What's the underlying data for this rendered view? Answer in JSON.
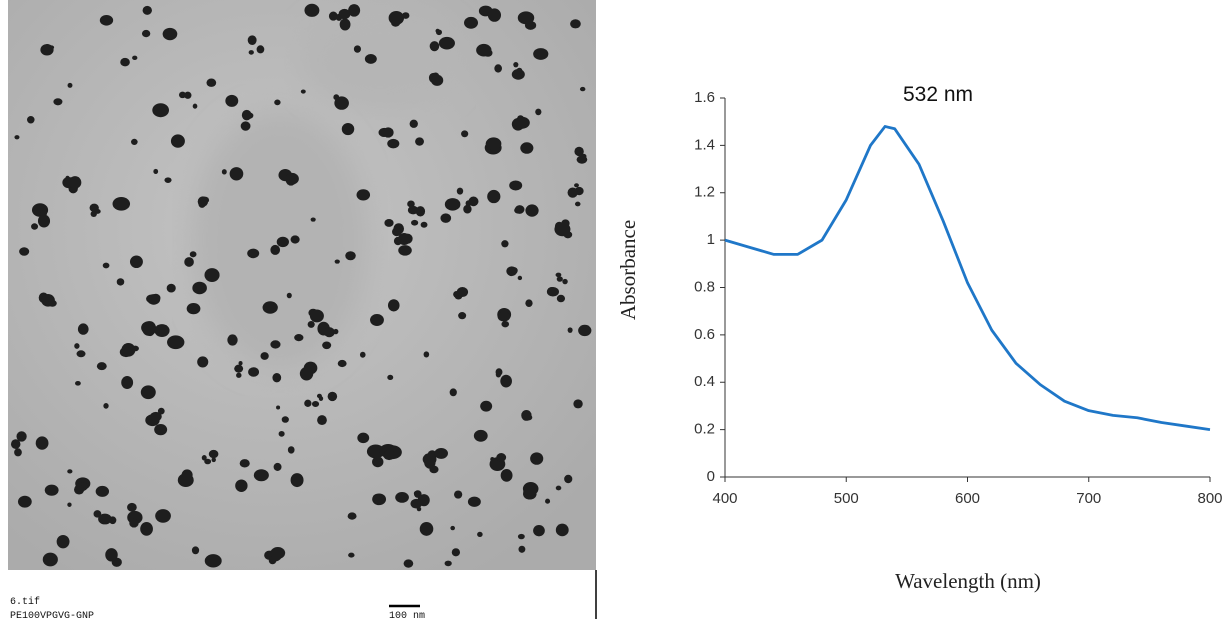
{
  "image": {
    "filename": "6.tif",
    "sample": "PE100VPGVG-GNP",
    "scale_bar": "100 nm"
  },
  "chart_data": {
    "type": "line",
    "x_label": "Wavelength (nm)",
    "y_label": "Absorbance",
    "annotation": "532 nm",
    "x": [
      400,
      420,
      440,
      460,
      480,
      500,
      520,
      532,
      540,
      560,
      580,
      600,
      620,
      640,
      660,
      680,
      700,
      720,
      740,
      760,
      780,
      800
    ],
    "series": [
      {
        "name": "Absorbance",
        "color": "#1f77c8",
        "values": [
          1.0,
          0.97,
          0.94,
          0.94,
          1.0,
          1.17,
          1.4,
          1.48,
          1.47,
          1.32,
          1.08,
          0.82,
          0.62,
          0.48,
          0.39,
          0.32,
          0.28,
          0.26,
          0.25,
          0.23,
          0.215,
          0.2
        ]
      }
    ],
    "xlim": [
      400,
      800
    ],
    "xticks": [
      400,
      500,
      600,
      700,
      800
    ],
    "ylim": [
      0,
      1.6
    ],
    "yticks": [
      0,
      0.2,
      0.4,
      0.6,
      0.8,
      1,
      1.2,
      1.4,
      1.6
    ]
  }
}
